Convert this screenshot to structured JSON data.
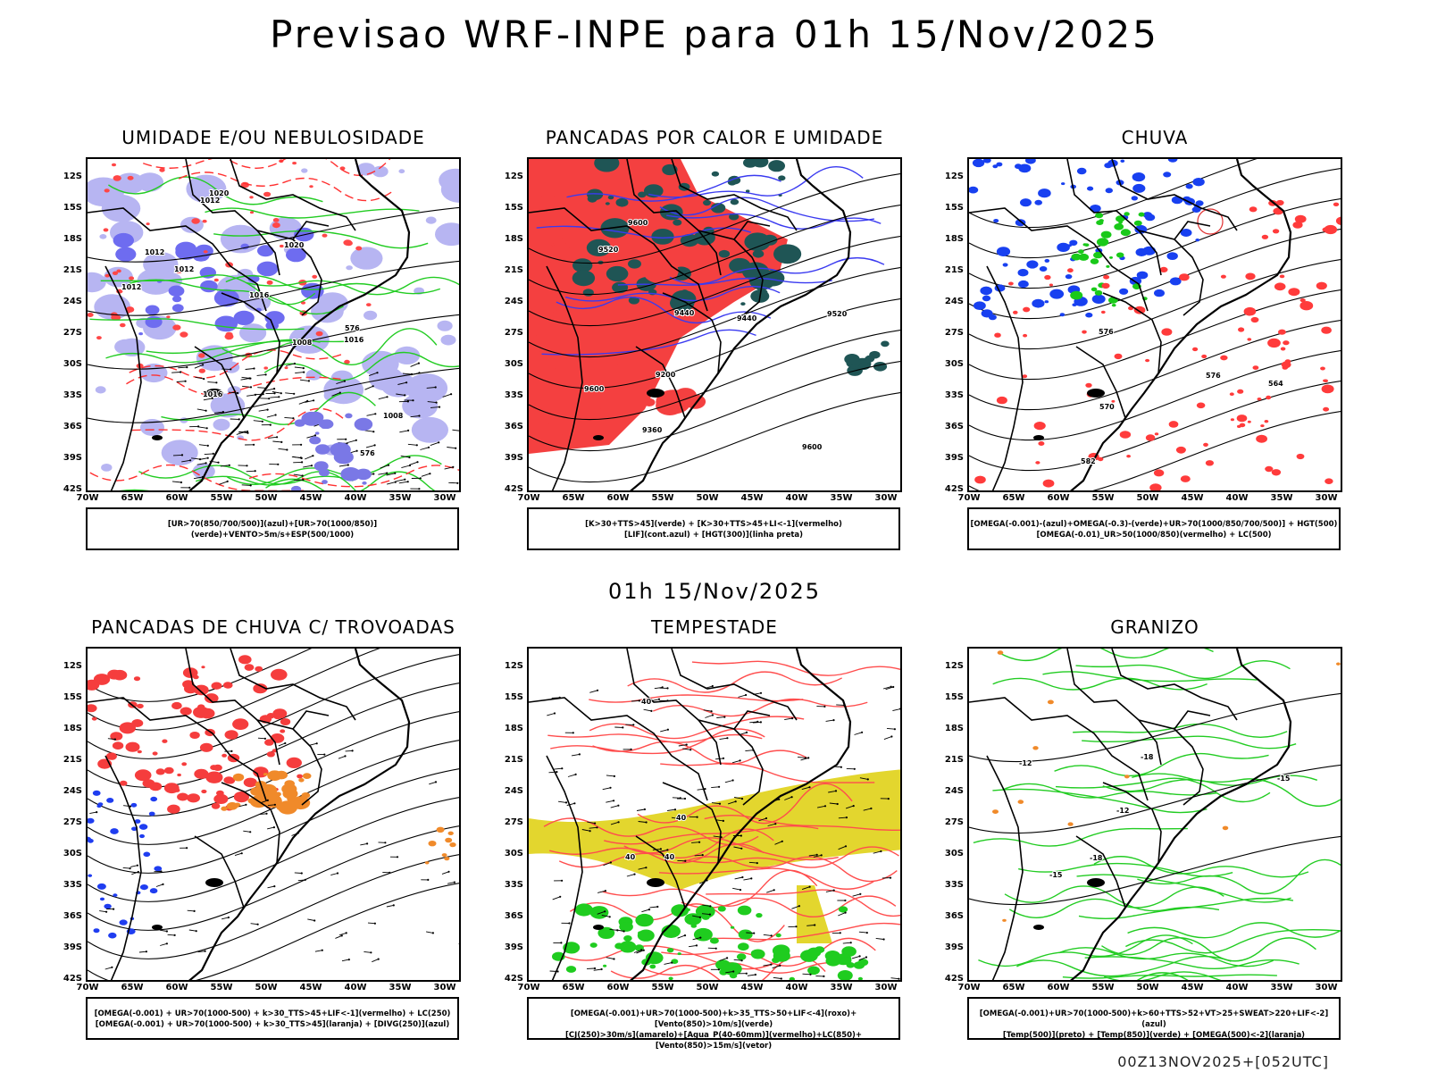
{
  "header": {
    "title": "Previsao WRF-INPE  para 01h 15/Nov/2025"
  },
  "mid_title": "01h 15/Nov/2025",
  "footer": "00Z13NOV2025+[052UTC]",
  "axes": {
    "lat_labels": [
      "12S",
      "15S",
      "18S",
      "21S",
      "24S",
      "27S",
      "30S",
      "33S",
      "36S",
      "39S",
      "42S"
    ],
    "lon_labels": [
      "70W",
      "65W",
      "60W",
      "55W",
      "50W",
      "45W",
      "40W",
      "35W",
      "30W"
    ]
  },
  "panels": [
    {
      "id": "umidade",
      "title": "UMIDADE E/OU NEBULOSIDADE",
      "legend": [
        "[UR>70(850/700/500)](azul)+[UR>70(1000/850)](verde)+VENTO>5m/s+ESP(500/1000)"
      ],
      "contour_labels": [
        "1012",
        "1012",
        "1016",
        "1012",
        "1016",
        "1020",
        "1012",
        "1008",
        "1008",
        "1016",
        "1020",
        "576",
        "576"
      ]
    },
    {
      "id": "pancadas-calor",
      "title": "PANCADAS POR CALOR E UMIDADE",
      "legend": [
        "[K>30+TTS>45](verde) + [K>30+TTS>45+LI<-1](vermelho)",
        "[LIF](cont.azul) + [HGT(300)](linha preta)"
      ],
      "contour_labels": [
        "9600",
        "9520",
        "9440",
        "9600",
        "9600",
        "9520",
        "9440",
        "9360",
        "9200"
      ]
    },
    {
      "id": "chuva",
      "title": "CHUVA",
      "legend": [
        "[OMEGA(-0.001)-(azul)+OMEGA(-0.3)-(verde)+UR>70(1000/850/700/500)] + HGT(500)",
        "[OMEGA(-0.01)_UR>50(1000/850)(vermelho) + LC(500)"
      ],
      "contour_labels": [
        "582",
        "576",
        "576",
        "570",
        "564"
      ]
    },
    {
      "id": "trovoadas",
      "title": "PANCADAS DE CHUVA C/ TROVOADAS",
      "legend": [
        "[OMEGA(-0.001) + UR>70(1000-500) + k>30_TTS>45+LIF<-1](vermelho) + LC(250)",
        "[OMEGA(-0.001) + UR>70(1000-500) + k>30_TTS>45](laranja) + [DIVG(250)](azul)"
      ],
      "contour_labels": []
    },
    {
      "id": "tempestade",
      "title": "TEMPESTADE",
      "legend": [
        "[OMEGA(-0.001)+UR>70(1000-500)+k>35_TTS>50+LIF<-4](roxo)+[Vento(850)>10m/s](verde)",
        "[CJ(250)>30m/s](amarelo)+[Agua_P(40-60mm)](vermelho)+LC(850)+[Vento(850)>15m/s](vetor)"
      ],
      "contour_labels": [
        "40",
        "40",
        "40",
        "40"
      ]
    },
    {
      "id": "granizo",
      "title": "GRANIZO",
      "legend": [
        "[OMEGA(-0.001)+UR>70(1000-500)+k>60+TTS>52+VT>25+SWEAT>220+LIF<-2](azul)",
        "[Temp(500)](preto) + [Temp(850)](verde) + [OMEGA(500)<-2](laranja)"
      ],
      "contour_labels": [
        "-12",
        "-12",
        "-15",
        "-15",
        "-18",
        "-18"
      ]
    }
  ]
}
